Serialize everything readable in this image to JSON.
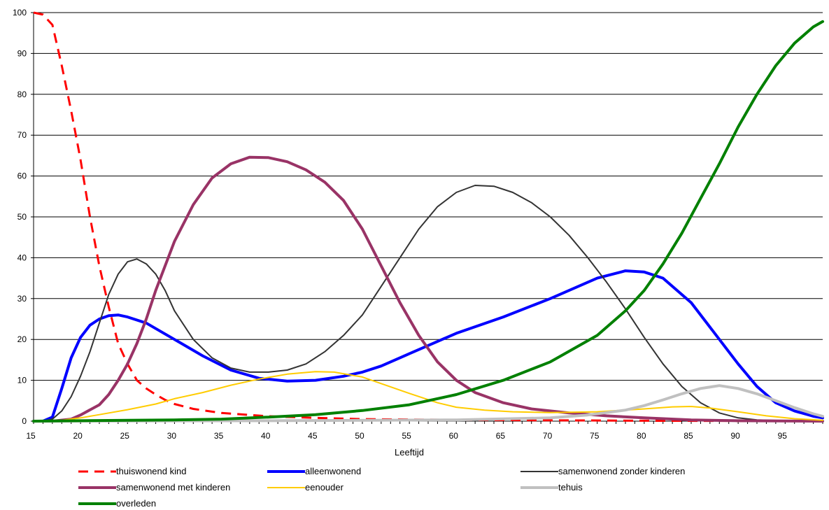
{
  "chart_data": {
    "type": "line",
    "title": "",
    "xlabel": "Leeftijd",
    "ylabel": "",
    "xlim": [
      15,
      99
    ],
    "ylim": [
      0,
      100
    ],
    "x_ticks": [
      15,
      20,
      25,
      30,
      35,
      40,
      45,
      50,
      55,
      60,
      65,
      70,
      75,
      80,
      85,
      90,
      95
    ],
    "y_ticks": [
      0,
      10,
      20,
      30,
      40,
      50,
      60,
      70,
      80,
      90,
      100
    ],
    "grid": "horizontal",
    "legend_position": "bottom",
    "series": [
      {
        "name": "thuiswonend kind",
        "color": "#ff0000",
        "dashed": true,
        "width": 3,
        "points": [
          [
            15,
            100
          ],
          [
            16,
            99.5
          ],
          [
            17,
            97
          ],
          [
            18,
            87
          ],
          [
            19,
            76
          ],
          [
            20,
            64
          ],
          [
            21,
            50
          ],
          [
            22,
            38
          ],
          [
            23,
            28
          ],
          [
            24,
            19
          ],
          [
            25,
            14
          ],
          [
            26,
            10
          ],
          [
            27,
            8
          ],
          [
            28,
            6.5
          ],
          [
            29,
            5.2
          ],
          [
            30,
            4.2
          ],
          [
            32,
            3
          ],
          [
            35,
            2
          ],
          [
            40,
            1.2
          ],
          [
            45,
            0.8
          ],
          [
            50,
            0.5
          ],
          [
            55,
            0.4
          ],
          [
            60,
            0.3
          ],
          [
            70,
            0.2
          ],
          [
            80,
            0.1
          ],
          [
            99,
            0
          ]
        ]
      },
      {
        "name": "alleenwonend",
        "color": "#0000ff",
        "dashed": false,
        "width": 4,
        "points": [
          [
            15,
            0
          ],
          [
            16,
            0
          ],
          [
            17,
            1
          ],
          [
            18,
            8
          ],
          [
            19,
            15.5
          ],
          [
            20,
            20.5
          ],
          [
            21,
            23.5
          ],
          [
            22,
            25
          ],
          [
            23,
            25.8
          ],
          [
            24,
            26
          ],
          [
            25,
            25.5
          ],
          [
            27,
            24
          ],
          [
            30,
            20
          ],
          [
            33,
            16
          ],
          [
            36,
            12.5
          ],
          [
            39,
            10.5
          ],
          [
            42,
            9.8
          ],
          [
            45,
            10
          ],
          [
            48,
            11
          ],
          [
            50,
            12
          ],
          [
            52,
            13.5
          ],
          [
            55,
            16.5
          ],
          [
            58,
            19.5
          ],
          [
            60,
            21.5
          ],
          [
            65,
            25.5
          ],
          [
            70,
            30
          ],
          [
            75,
            35
          ],
          [
            78,
            36.8
          ],
          [
            80,
            36.5
          ],
          [
            82,
            35
          ],
          [
            85,
            29
          ],
          [
            88,
            20
          ],
          [
            90,
            14
          ],
          [
            92,
            8.5
          ],
          [
            94,
            4.5
          ],
          [
            96,
            2.5
          ],
          [
            98,
            1.2
          ],
          [
            99,
            0.8
          ]
        ]
      },
      {
        "name": "samenwonend zonder kinderen",
        "color": "#333333",
        "dashed": false,
        "width": 2,
        "points": [
          [
            15,
            0
          ],
          [
            16,
            0
          ],
          [
            17,
            0.5
          ],
          [
            18,
            2.5
          ],
          [
            19,
            6
          ],
          [
            20,
            11
          ],
          [
            21,
            17
          ],
          [
            22,
            24
          ],
          [
            23,
            31
          ],
          [
            24,
            36
          ],
          [
            25,
            39
          ],
          [
            26,
            39.7
          ],
          [
            27,
            38.5
          ],
          [
            28,
            36
          ],
          [
            29,
            32
          ],
          [
            30,
            27
          ],
          [
            32,
            20
          ],
          [
            34,
            15.5
          ],
          [
            36,
            13
          ],
          [
            38,
            12
          ],
          [
            40,
            12
          ],
          [
            42,
            12.5
          ],
          [
            44,
            14
          ],
          [
            46,
            17
          ],
          [
            48,
            21
          ],
          [
            50,
            26
          ],
          [
            52,
            33
          ],
          [
            54,
            40
          ],
          [
            56,
            47
          ],
          [
            58,
            52.5
          ],
          [
            60,
            56
          ],
          [
            62,
            57.7
          ],
          [
            64,
            57.5
          ],
          [
            66,
            56
          ],
          [
            68,
            53.5
          ],
          [
            70,
            50
          ],
          [
            72,
            45.5
          ],
          [
            74,
            40
          ],
          [
            76,
            34
          ],
          [
            78,
            27.5
          ],
          [
            80,
            20.5
          ],
          [
            82,
            14
          ],
          [
            84,
            8.5
          ],
          [
            86,
            4.5
          ],
          [
            88,
            2
          ],
          [
            90,
            0.8
          ],
          [
            92,
            0.3
          ],
          [
            95,
            0.1
          ],
          [
            99,
            0
          ]
        ]
      },
      {
        "name": "samenwonend met kinderen",
        "color": "#993366",
        "dashed": false,
        "width": 4,
        "points": [
          [
            15,
            0
          ],
          [
            17,
            0
          ],
          [
            19,
            0.5
          ],
          [
            20,
            1.5
          ],
          [
            22,
            4
          ],
          [
            23,
            6.5
          ],
          [
            24,
            10
          ],
          [
            25,
            14
          ],
          [
            26,
            19
          ],
          [
            27,
            25
          ],
          [
            28,
            32
          ],
          [
            30,
            44
          ],
          [
            32,
            53
          ],
          [
            34,
            59.5
          ],
          [
            36,
            63
          ],
          [
            38,
            64.6
          ],
          [
            40,
            64.5
          ],
          [
            42,
            63.5
          ],
          [
            44,
            61.5
          ],
          [
            46,
            58.5
          ],
          [
            48,
            54
          ],
          [
            50,
            47
          ],
          [
            52,
            38
          ],
          [
            54,
            29
          ],
          [
            56,
            21
          ],
          [
            58,
            14.5
          ],
          [
            60,
            10
          ],
          [
            62,
            7
          ],
          [
            65,
            4.5
          ],
          [
            68,
            3
          ],
          [
            72,
            2
          ],
          [
            76,
            1.3
          ],
          [
            80,
            0.8
          ],
          [
            85,
            0.3
          ],
          [
            90,
            0.1
          ],
          [
            99,
            0
          ]
        ]
      },
      {
        "name": "eenouder",
        "color": "#ffcc00",
        "dashed": false,
        "width": 2,
        "points": [
          [
            15,
            0
          ],
          [
            18,
            0.2
          ],
          [
            20,
            0.8
          ],
          [
            22,
            1.6
          ],
          [
            25,
            2.8
          ],
          [
            28,
            4.2
          ],
          [
            30,
            5.5
          ],
          [
            33,
            7
          ],
          [
            36,
            8.8
          ],
          [
            39,
            10.3
          ],
          [
            42,
            11.5
          ],
          [
            45,
            12.1
          ],
          [
            47,
            12
          ],
          [
            50,
            10.8
          ],
          [
            52,
            9.2
          ],
          [
            55,
            6.8
          ],
          [
            58,
            4.5
          ],
          [
            60,
            3.4
          ],
          [
            63,
            2.7
          ],
          [
            66,
            2.3
          ],
          [
            70,
            2.1
          ],
          [
            75,
            2.3
          ],
          [
            80,
            3
          ],
          [
            83,
            3.5
          ],
          [
            85,
            3.6
          ],
          [
            87,
            3.2
          ],
          [
            90,
            2.3
          ],
          [
            93,
            1.3
          ],
          [
            96,
            0.6
          ],
          [
            99,
            0.2
          ]
        ]
      },
      {
        "name": "tehuis",
        "color": "#c0c0c0",
        "dashed": false,
        "width": 4,
        "points": [
          [
            15,
            0
          ],
          [
            40,
            0.1
          ],
          [
            60,
            0.3
          ],
          [
            70,
            0.8
          ],
          [
            74,
            1.5
          ],
          [
            78,
            2.7
          ],
          [
            80,
            3.8
          ],
          [
            82,
            5.2
          ],
          [
            84,
            6.7
          ],
          [
            86,
            8
          ],
          [
            88,
            8.7
          ],
          [
            90,
            8
          ],
          [
            92,
            6.7
          ],
          [
            94,
            5
          ],
          [
            96,
            3.3
          ],
          [
            98,
            1.8
          ],
          [
            99,
            1.2
          ]
        ]
      },
      {
        "name": "overleden",
        "color": "#008000",
        "dashed": false,
        "width": 4,
        "points": [
          [
            15,
            0
          ],
          [
            20,
            0.1
          ],
          [
            25,
            0.2
          ],
          [
            30,
            0.3
          ],
          [
            35,
            0.5
          ],
          [
            40,
            1
          ],
          [
            45,
            1.6
          ],
          [
            50,
            2.6
          ],
          [
            55,
            4
          ],
          [
            60,
            6.5
          ],
          [
            65,
            10
          ],
          [
            70,
            14.5
          ],
          [
            75,
            21
          ],
          [
            78,
            27
          ],
          [
            80,
            32
          ],
          [
            82,
            38.5
          ],
          [
            84,
            46
          ],
          [
            86,
            54.5
          ],
          [
            88,
            63
          ],
          [
            90,
            72
          ],
          [
            92,
            80
          ],
          [
            94,
            87
          ],
          [
            96,
            92.5
          ],
          [
            98,
            96.5
          ],
          [
            99,
            97.8
          ]
        ]
      }
    ]
  }
}
